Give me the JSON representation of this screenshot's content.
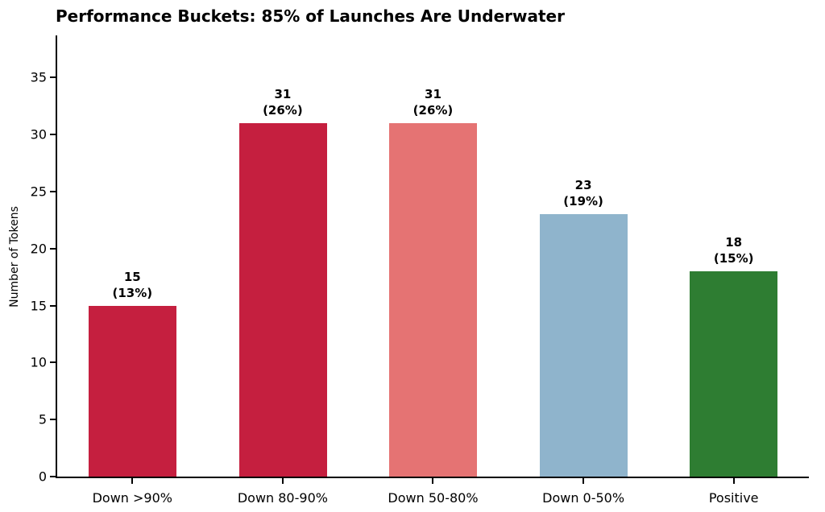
{
  "chart_data": {
    "type": "bar",
    "title": "Performance Buckets: 85% of Launches Are Underwater",
    "xlabel": "",
    "ylabel": "Number of Tokens",
    "categories": [
      "Down >90%",
      "Down 80-90%",
      "Down 50-80%",
      "Down 0-50%",
      "Positive"
    ],
    "values": [
      15,
      31,
      31,
      23,
      18
    ],
    "percent_labels": [
      "(13%)",
      "(26%)",
      "(26%)",
      "(19%)",
      "(15%)"
    ],
    "bar_colors": [
      "#C51F3F",
      "#C51F3F",
      "#E57373",
      "#8FB4CC",
      "#2E7D32"
    ],
    "ylim": [
      0,
      38.7
    ],
    "yticks": [
      0,
      5,
      10,
      15,
      20,
      25,
      30,
      35
    ],
    "grid": false,
    "legend": "none",
    "spines": [
      "left",
      "bottom"
    ]
  }
}
